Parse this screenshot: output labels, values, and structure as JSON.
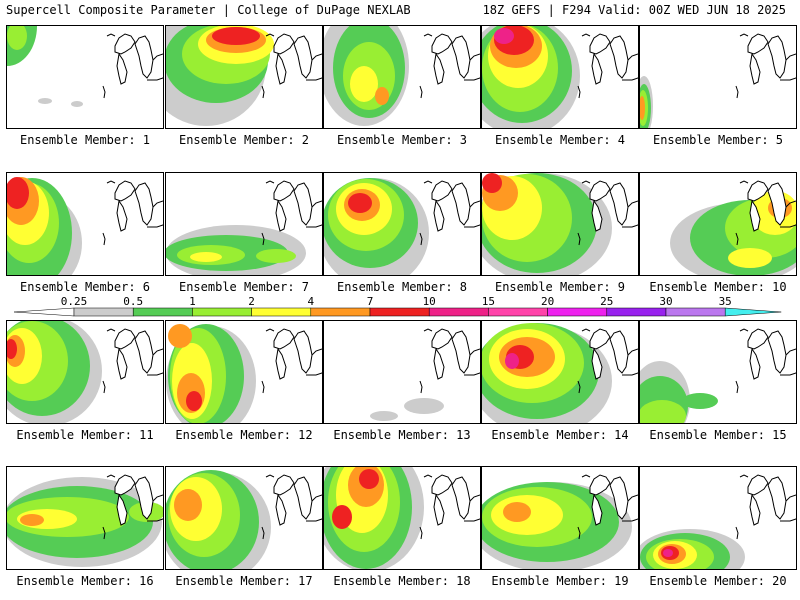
{
  "header": {
    "title": "Supercell Composite Parameter | College of DuPage NEXLAB",
    "run_info": "18Z GEFS | F294 Valid: 00Z WED JUN 18 2025"
  },
  "colorbar": {
    "ticks": [
      "0.25",
      "0.5",
      "1",
      "2",
      "4",
      "7",
      "10",
      "15",
      "20",
      "25",
      "30",
      "35"
    ],
    "colors": [
      "#cccccc",
      "#55cc55",
      "#99ee33",
      "#ffff33",
      "#ff9922",
      "#ee2222",
      "#ee2288",
      "#ff44aa",
      "#ee22ee",
      "#9922ee",
      "#bb77ee",
      "#44eeee"
    ]
  },
  "members": [
    {
      "label": "Ensemble Member: 1",
      "blobs": [
        [
          0,
          0,
          30,
          40,
          "#55cc55"
        ],
        [
          10,
          10,
          10,
          14,
          "#99ee33"
        ],
        [
          38,
          75,
          7,
          3,
          "#cccccc"
        ],
        [
          70,
          78,
          6,
          3,
          "#cccccc"
        ]
      ]
    },
    {
      "label": "Ensemble Member: 2",
      "blobs": [
        [
          40,
          40,
          60,
          60,
          "#cccccc"
        ],
        [
          50,
          35,
          52,
          42,
          "#55cc55"
        ],
        [
          60,
          28,
          44,
          30,
          "#99ee33"
        ],
        [
          70,
          18,
          38,
          20,
          "#ffff33"
        ],
        [
          70,
          14,
          30,
          13,
          "#ff9922"
        ],
        [
          70,
          10,
          24,
          9,
          "#ee2222"
        ]
      ]
    },
    {
      "label": "Ensemble Member: 3",
      "blobs": [
        [
          40,
          40,
          45,
          60,
          "#cccccc"
        ],
        [
          45,
          42,
          36,
          50,
          "#55cc55"
        ],
        [
          45,
          50,
          26,
          34,
          "#99ee33"
        ],
        [
          40,
          58,
          14,
          18,
          "#ffff33"
        ],
        [
          58,
          70,
          7,
          9,
          "#ff9922"
        ]
      ]
    },
    {
      "label": "Ensemble Member: 4",
      "blobs": [
        [
          40,
          50,
          58,
          60,
          "#cccccc"
        ],
        [
          40,
          45,
          50,
          52,
          "#55cc55"
        ],
        [
          38,
          42,
          38,
          44,
          "#99ee33"
        ],
        [
          36,
          30,
          30,
          32,
          "#ffff33"
        ],
        [
          34,
          20,
          26,
          22,
          "#ff9922"
        ],
        [
          32,
          14,
          20,
          15,
          "#ee2222"
        ],
        [
          22,
          10,
          10,
          8,
          "#ee2288"
        ]
      ]
    },
    {
      "label": "Ensemble Member: 5",
      "blobs": [
        [
          4,
          80,
          9,
          30,
          "#cccccc"
        ],
        [
          4,
          82,
          7,
          24,
          "#55cc55"
        ],
        [
          3,
          82,
          5,
          18,
          "#99ee33"
        ],
        [
          2,
          82,
          3,
          12,
          "#ff9922"
        ]
      ]
    },
    {
      "label": "Ensemble Member: 6",
      "blobs": [
        [
          30,
          70,
          45,
          50,
          "#cccccc"
        ],
        [
          25,
          60,
          40,
          55,
          "#55cc55"
        ],
        [
          22,
          50,
          30,
          40,
          "#99ee33"
        ],
        [
          18,
          40,
          24,
          32,
          "#ffff33"
        ],
        [
          14,
          28,
          18,
          24,
          "#ff9922"
        ],
        [
          10,
          20,
          12,
          16,
          "#ee2222"
        ]
      ]
    },
    {
      "label": "Ensemble Member: 7",
      "blobs": [
        [
          70,
          80,
          70,
          28,
          "#cccccc"
        ],
        [
          60,
          80,
          62,
          18,
          "#55cc55"
        ],
        [
          45,
          82,
          34,
          10,
          "#99ee33"
        ],
        [
          40,
          84,
          16,
          5,
          "#ffff33"
        ],
        [
          110,
          83,
          20,
          7,
          "#99ee33"
        ]
      ]
    },
    {
      "label": "Ensemble Member: 8",
      "blobs": [
        [
          50,
          60,
          55,
          55,
          "#cccccc"
        ],
        [
          46,
          50,
          48,
          45,
          "#55cc55"
        ],
        [
          42,
          42,
          38,
          36,
          "#99ee33"
        ],
        [
          40,
          36,
          28,
          26,
          "#ffff33"
        ],
        [
          38,
          32,
          18,
          16,
          "#ff9922"
        ],
        [
          36,
          30,
          12,
          10,
          "#ee2222"
        ]
      ]
    },
    {
      "label": "Ensemble Member: 9",
      "blobs": [
        [
          60,
          55,
          70,
          55,
          "#cccccc"
        ],
        [
          55,
          50,
          60,
          50,
          "#55cc55"
        ],
        [
          45,
          45,
          45,
          44,
          "#99ee33"
        ],
        [
          30,
          35,
          30,
          32,
          "#ffff33"
        ],
        [
          18,
          20,
          18,
          18,
          "#ff9922"
        ],
        [
          10,
          10,
          10,
          10,
          "#ee2222"
        ]
      ]
    },
    {
      "label": "Ensemble Member: 10",
      "blobs": [
        [
          100,
          70,
          70,
          40,
          "#cccccc"
        ],
        [
          110,
          65,
          60,
          38,
          "#55cc55"
        ],
        [
          125,
          55,
          40,
          30,
          "#99ee33"
        ],
        [
          135,
          40,
          24,
          22,
          "#ffff33"
        ],
        [
          140,
          35,
          12,
          10,
          "#ff9922"
        ],
        [
          110,
          85,
          22,
          10,
          "#ffff33"
        ]
      ]
    },
    {
      "label": "Ensemble Member: 11",
      "blobs": [
        [
          40,
          50,
          55,
          55,
          "#cccccc"
        ],
        [
          35,
          45,
          48,
          50,
          "#55cc55"
        ],
        [
          25,
          40,
          36,
          40,
          "#99ee33"
        ],
        [
          15,
          35,
          20,
          28,
          "#ffff33"
        ],
        [
          8,
          30,
          10,
          16,
          "#ff9922"
        ],
        [
          4,
          28,
          6,
          10,
          "#ee2222"
        ]
      ]
    },
    {
      "label": "Ensemble Member: 12",
      "blobs": [
        [
          45,
          60,
          45,
          55,
          "#cccccc"
        ],
        [
          40,
          55,
          38,
          52,
          "#55cc55"
        ],
        [
          32,
          55,
          28,
          48,
          "#99ee33"
        ],
        [
          26,
          60,
          20,
          38,
          "#ffff33"
        ],
        [
          25,
          72,
          14,
          20,
          "#ff9922"
        ],
        [
          28,
          80,
          8,
          10,
          "#ee2222"
        ],
        [
          14,
          15,
          12,
          12,
          "#ff9922"
        ]
      ]
    },
    {
      "label": "Ensemble Member: 13",
      "blobs": [
        [
          100,
          85,
          20,
          8,
          "#cccccc"
        ],
        [
          60,
          95,
          14,
          5,
          "#cccccc"
        ]
      ]
    },
    {
      "label": "Ensemble Member: 14",
      "blobs": [
        [
          60,
          60,
          70,
          55,
          "#cccccc"
        ],
        [
          55,
          50,
          62,
          48,
          "#55cc55"
        ],
        [
          50,
          42,
          52,
          40,
          "#99ee33"
        ],
        [
          45,
          38,
          38,
          30,
          "#ffff33"
        ],
        [
          45,
          36,
          28,
          20,
          "#ff9922"
        ],
        [
          38,
          36,
          14,
          12,
          "#ee2222"
        ],
        [
          30,
          40,
          7,
          8,
          "#ee2288"
        ]
      ]
    },
    {
      "label": "Ensemble Member: 15",
      "blobs": [
        [
          20,
          80,
          30,
          40,
          "#cccccc"
        ],
        [
          20,
          85,
          28,
          30,
          "#55cc55"
        ],
        [
          22,
          95,
          24,
          16,
          "#99ee33"
        ],
        [
          60,
          80,
          18,
          8,
          "#55cc55"
        ]
      ]
    },
    {
      "label": "Ensemble Member: 16",
      "blobs": [
        [
          75,
          55,
          80,
          45,
          "#cccccc"
        ],
        [
          70,
          55,
          76,
          36,
          "#55cc55"
        ],
        [
          60,
          50,
          62,
          20,
          "#99ee33"
        ],
        [
          40,
          52,
          30,
          10,
          "#ffff33"
        ],
        [
          25,
          53,
          12,
          6,
          "#ff9922"
        ],
        [
          140,
          45,
          18,
          10,
          "#99ee33"
        ]
      ]
    },
    {
      "label": "Ensemble Member: 17",
      "blobs": [
        [
          50,
          60,
          55,
          55,
          "#cccccc"
        ],
        [
          45,
          55,
          48,
          52,
          "#55cc55"
        ],
        [
          38,
          48,
          36,
          42,
          "#99ee33"
        ],
        [
          30,
          42,
          26,
          32,
          "#ffff33"
        ],
        [
          22,
          38,
          14,
          16,
          "#ff9922"
        ]
      ]
    },
    {
      "label": "Ensemble Member: 18",
      "blobs": [
        [
          45,
          40,
          55,
          65,
          "#cccccc"
        ],
        [
          42,
          40,
          46,
          62,
          "#55cc55"
        ],
        [
          40,
          35,
          36,
          50,
          "#99ee33"
        ],
        [
          38,
          28,
          26,
          38,
          "#ffff33"
        ],
        [
          42,
          18,
          18,
          22,
          "#ff9922"
        ],
        [
          18,
          50,
          10,
          12,
          "#ee2222"
        ],
        [
          45,
          12,
          10,
          10,
          "#ee2222"
        ]
      ]
    },
    {
      "label": "Ensemble Member: 19",
      "blobs": [
        [
          70,
          60,
          80,
          45,
          "#cccccc"
        ],
        [
          65,
          55,
          72,
          40,
          "#55cc55"
        ],
        [
          55,
          50,
          55,
          30,
          "#99ee33"
        ],
        [
          45,
          48,
          36,
          20,
          "#ffff33"
        ],
        [
          35,
          45,
          14,
          10,
          "#ff9922"
        ]
      ]
    },
    {
      "label": "Ensemble Member: 20",
      "blobs": [
        [
          50,
          90,
          55,
          28,
          "#cccccc"
        ],
        [
          45,
          90,
          45,
          24,
          "#55cc55"
        ],
        [
          40,
          90,
          34,
          18,
          "#99ee33"
        ],
        [
          35,
          88,
          22,
          14,
          "#ffff33"
        ],
        [
          32,
          87,
          14,
          10,
          "#ff9922"
        ],
        [
          30,
          86,
          9,
          7,
          "#ee2222"
        ],
        [
          28,
          86,
          5,
          4,
          "#ee2288"
        ]
      ]
    }
  ]
}
